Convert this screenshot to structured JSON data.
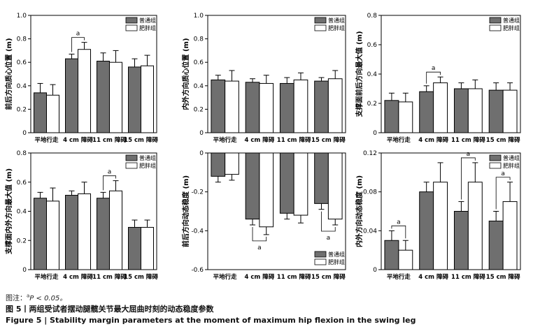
{
  "colors": {
    "group1": "#6f6f6f",
    "group2": "#ffffff",
    "outline": "#000000"
  },
  "chart_data": [
    {
      "type": "bar",
      "categories": [
        "平地行走",
        "4 cm 障碍",
        "11 cm 障碍",
        "15 cm 障碍"
      ],
      "ylabel": "前后方向质心位置 (m)",
      "ylim": [
        0,
        1.0
      ],
      "yticks": [
        0,
        0.2,
        0.4,
        0.6,
        0.8,
        1.0
      ],
      "ytick_labels": [
        "0",
        "0.2",
        "0.4",
        "0.6",
        "0.8",
        "1.0"
      ],
      "legend_position": "top-right",
      "series": [
        {
          "name": "普通组",
          "values": [
            0.34,
            0.63,
            0.61,
            0.56
          ],
          "errors": [
            0.08,
            0.04,
            0.07,
            0.07
          ]
        },
        {
          "name": "肥胖组",
          "values": [
            0.32,
            0.71,
            0.6,
            0.57
          ],
          "errors": [
            0.09,
            0.06,
            0.1,
            0.09
          ]
        }
      ],
      "annotations": [
        {
          "label": "a",
          "category_index": 1,
          "placement": "above"
        }
      ]
    },
    {
      "type": "bar",
      "categories": [
        "平地行走",
        "4 cm 障碍",
        "11 cm 障碍",
        "15 cm 障碍"
      ],
      "ylabel": "内外方向质心位置 (m)",
      "ylim": [
        0,
        1.0
      ],
      "yticks": [
        0,
        0.2,
        0.4,
        0.6,
        0.8,
        1.0
      ],
      "ytick_labels": [
        "0",
        "0.2",
        "0.4",
        "0.6",
        "0.8",
        "1.0"
      ],
      "legend_position": "top-right",
      "series": [
        {
          "name": "普通组",
          "values": [
            0.45,
            0.43,
            0.42,
            0.44
          ],
          "errors": [
            0.04,
            0.03,
            0.05,
            0.03
          ]
        },
        {
          "name": "肥胖组",
          "values": [
            0.44,
            0.42,
            0.45,
            0.46
          ],
          "errors": [
            0.09,
            0.07,
            0.06,
            0.07
          ]
        }
      ],
      "annotations": []
    },
    {
      "type": "bar",
      "categories": [
        "平地行走",
        "4 cm 障碍",
        "11 cm 障碍",
        "15 cm 障碍"
      ],
      "ylabel": "支撑面前后方向最大值 (m)",
      "ylim": [
        0,
        0.8
      ],
      "yticks": [
        0,
        0.2,
        0.4,
        0.6,
        0.8
      ],
      "ytick_labels": [
        "0",
        "0.2",
        "0.4",
        "0.6",
        "0.8"
      ],
      "legend_position": "top-right",
      "series": [
        {
          "name": "普通组",
          "values": [
            0.22,
            0.28,
            0.3,
            0.29
          ],
          "errors": [
            0.05,
            0.04,
            0.04,
            0.05
          ]
        },
        {
          "name": "肥胖组",
          "values": [
            0.21,
            0.34,
            0.3,
            0.29
          ],
          "errors": [
            0.06,
            0.04,
            0.06,
            0.05
          ]
        }
      ],
      "annotations": [
        {
          "label": "a",
          "category_index": 1,
          "placement": "above"
        }
      ]
    },
    {
      "type": "bar",
      "categories": [
        "平地行走",
        "4 cm 障碍",
        "11 cm 障碍",
        "15 cm 障碍"
      ],
      "ylabel": "支撑面内外方向最大值 (m)",
      "ylim": [
        0,
        0.8
      ],
      "yticks": [
        0,
        0.2,
        0.4,
        0.6,
        0.8
      ],
      "ytick_labels": [
        "0",
        "0.2",
        "0.4",
        "0.6",
        "0.8"
      ],
      "legend_position": "top-right",
      "series": [
        {
          "name": "普通组",
          "values": [
            0.49,
            0.51,
            0.49,
            0.29
          ],
          "errors": [
            0.04,
            0.03,
            0.04,
            0.05
          ]
        },
        {
          "name": "肥胖组",
          "values": [
            0.47,
            0.52,
            0.54,
            0.29
          ],
          "errors": [
            0.09,
            0.08,
            0.07,
            0.05
          ]
        }
      ],
      "annotations": [
        {
          "label": "a",
          "category_index": 2,
          "placement": "above"
        }
      ]
    },
    {
      "type": "bar",
      "categories": [
        "平地行走",
        "4 cm 障碍",
        "11 cm 障碍",
        "15 cm 障碍"
      ],
      "ylabel": "前后方向动态稳度 (m)",
      "ylim": [
        -0.6,
        0
      ],
      "yticks": [
        0,
        -0.2,
        -0.4,
        -0.6
      ],
      "ytick_labels": [
        "0",
        "-0.2",
        "-0.4",
        "-0.6"
      ],
      "legend_position": "bottom-right",
      "series": [
        {
          "name": "普通组",
          "values": [
            -0.12,
            -0.34,
            -0.31,
            -0.26
          ],
          "errors": [
            0.03,
            0.03,
            0.03,
            0.03
          ]
        },
        {
          "name": "肥胖组",
          "values": [
            -0.11,
            -0.38,
            -0.32,
            -0.34
          ],
          "errors": [
            0.03,
            0.04,
            0.04,
            0.03
          ]
        }
      ],
      "annotations": [
        {
          "label": "a",
          "category_index": 1,
          "placement": "below"
        },
        {
          "label": "a",
          "category_index": 3,
          "placement": "below"
        }
      ]
    },
    {
      "type": "bar",
      "categories": [
        "平地行走",
        "4 cm 障碍",
        "11 cm 障碍",
        "15 cm 障碍"
      ],
      "ylabel": "内外方向动态稳度 (m)",
      "ylim": [
        0,
        0.12
      ],
      "yticks": [
        0,
        0.04,
        0.08,
        0.12
      ],
      "ytick_labels": [
        "0",
        "0.04",
        "0.08",
        "0.12"
      ],
      "legend_position": "top-right",
      "series": [
        {
          "name": "普通组",
          "values": [
            0.03,
            0.08,
            0.06,
            0.05
          ],
          "errors": [
            0.01,
            0.01,
            0.01,
            0.01
          ]
        },
        {
          "name": "肥胖组",
          "values": [
            0.02,
            0.09,
            0.09,
            0.07
          ],
          "errors": [
            0.01,
            0.02,
            0.02,
            0.02
          ]
        }
      ],
      "annotations": [
        {
          "label": "a",
          "category_index": 0,
          "placement": "above"
        },
        {
          "label": "a",
          "category_index": 2,
          "placement": "above"
        },
        {
          "label": "a",
          "category_index": 3,
          "placement": "above"
        }
      ]
    }
  ],
  "caption": {
    "note_prefix": "图注：",
    "note_sup": "a",
    "note_text": "P < 0.05。",
    "title_cn": "图 5丨两组受试者摆动腿髋关节最大屈曲时刻的动态稳度参数",
    "title_en": "Figure 5 | Stability margin parameters at the moment of maximum hip flexion in the swing leg"
  }
}
